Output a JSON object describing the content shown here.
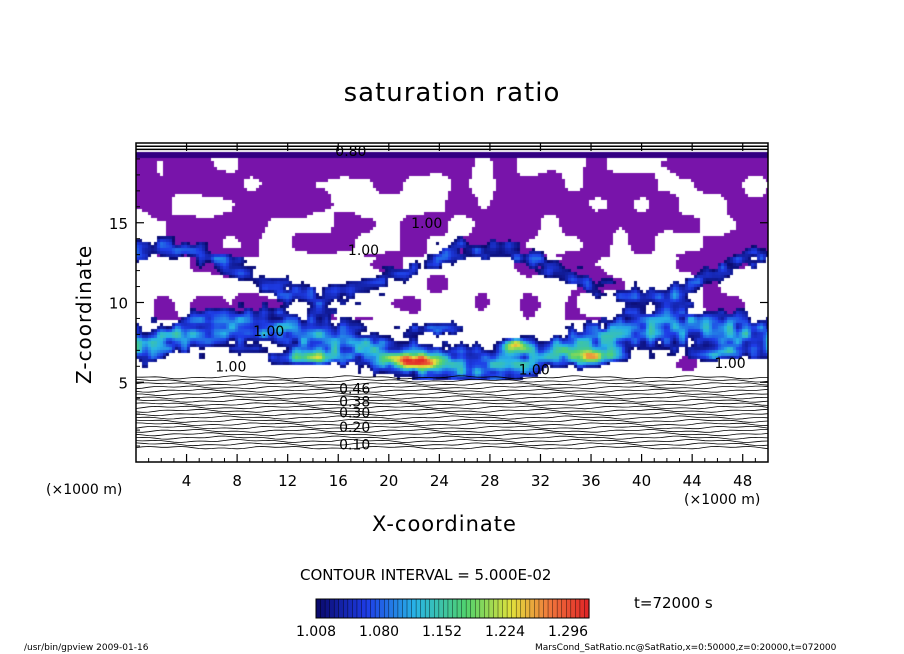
{
  "chart_data": {
    "type": "heatmap",
    "title": "saturation ratio",
    "xlabel": "X-coordinate",
    "ylabel": "Z-coordinate",
    "x_unit": "(×1000 m)",
    "z_unit": "(×1000 m)",
    "xlim": [
      0,
      50
    ],
    "ylim": [
      0,
      20
    ],
    "x_ticks": [
      4,
      8,
      12,
      16,
      20,
      24,
      28,
      32,
      36,
      40,
      44,
      48
    ],
    "y_ticks": [
      5,
      10,
      15
    ],
    "contour_interval": "CONTOUR INTERVAL = 5.000E-02",
    "contour_labels": [
      {
        "x": 17.3,
        "z": 1.1,
        "label": "0.10"
      },
      {
        "x": 17.3,
        "z": 2.2,
        "label": "0.20"
      },
      {
        "x": 17.3,
        "z": 3.1,
        "label": "0.30"
      },
      {
        "x": 17.3,
        "z": 3.8,
        "label": "0.38"
      },
      {
        "x": 17.3,
        "z": 4.6,
        "label": "0.46"
      },
      {
        "x": 7.5,
        "z": 6.0,
        "label": "1.00"
      },
      {
        "x": 31.5,
        "z": 5.8,
        "label": "1.00"
      },
      {
        "x": 47.0,
        "z": 6.2,
        "label": "1.00"
      },
      {
        "x": 10.5,
        "z": 8.2,
        "label": "1.00"
      },
      {
        "x": 18.0,
        "z": 13.3,
        "label": "1.00"
      },
      {
        "x": 23.0,
        "z": 15.0,
        "label": "1.00"
      },
      {
        "x": 17.0,
        "z": 19.5,
        "label": "0.80"
      }
    ],
    "colorbar": {
      "ticks": [
        "1.008",
        "1.080",
        "1.152",
        "1.224",
        "1.296"
      ],
      "min": 1.008,
      "max": 1.32
    },
    "time_label": "t=72000 s",
    "footer_left": "/usr/bin/gpview  2009-01-16",
    "footer_right": "MarsCond_SatRatio.nc@SatRatio,x=0:50000,z=0:20000,t=072000"
  }
}
